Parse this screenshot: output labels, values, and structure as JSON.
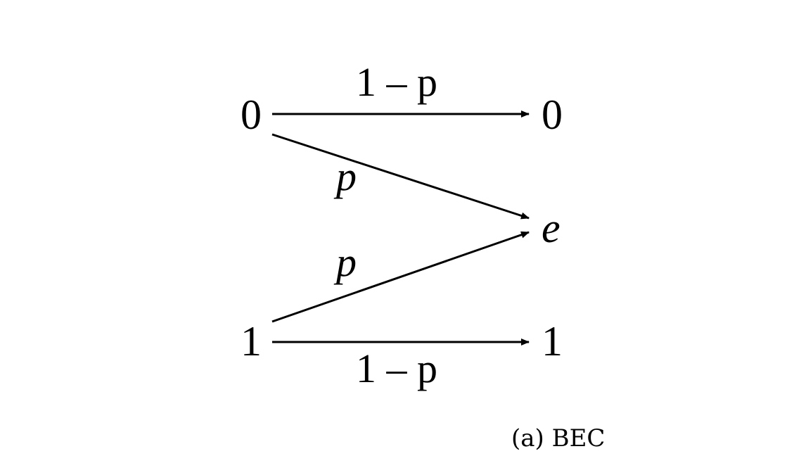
{
  "diagram": {
    "inputs": {
      "zero": "0",
      "one": "1"
    },
    "outputs": {
      "zero": "0",
      "erasure": "e",
      "one": "1"
    },
    "edges": {
      "zero_to_zero": "1 – p",
      "zero_to_e": "p",
      "one_to_e": "p",
      "one_to_one": "1 – p"
    },
    "caption": "(a) BEC"
  }
}
